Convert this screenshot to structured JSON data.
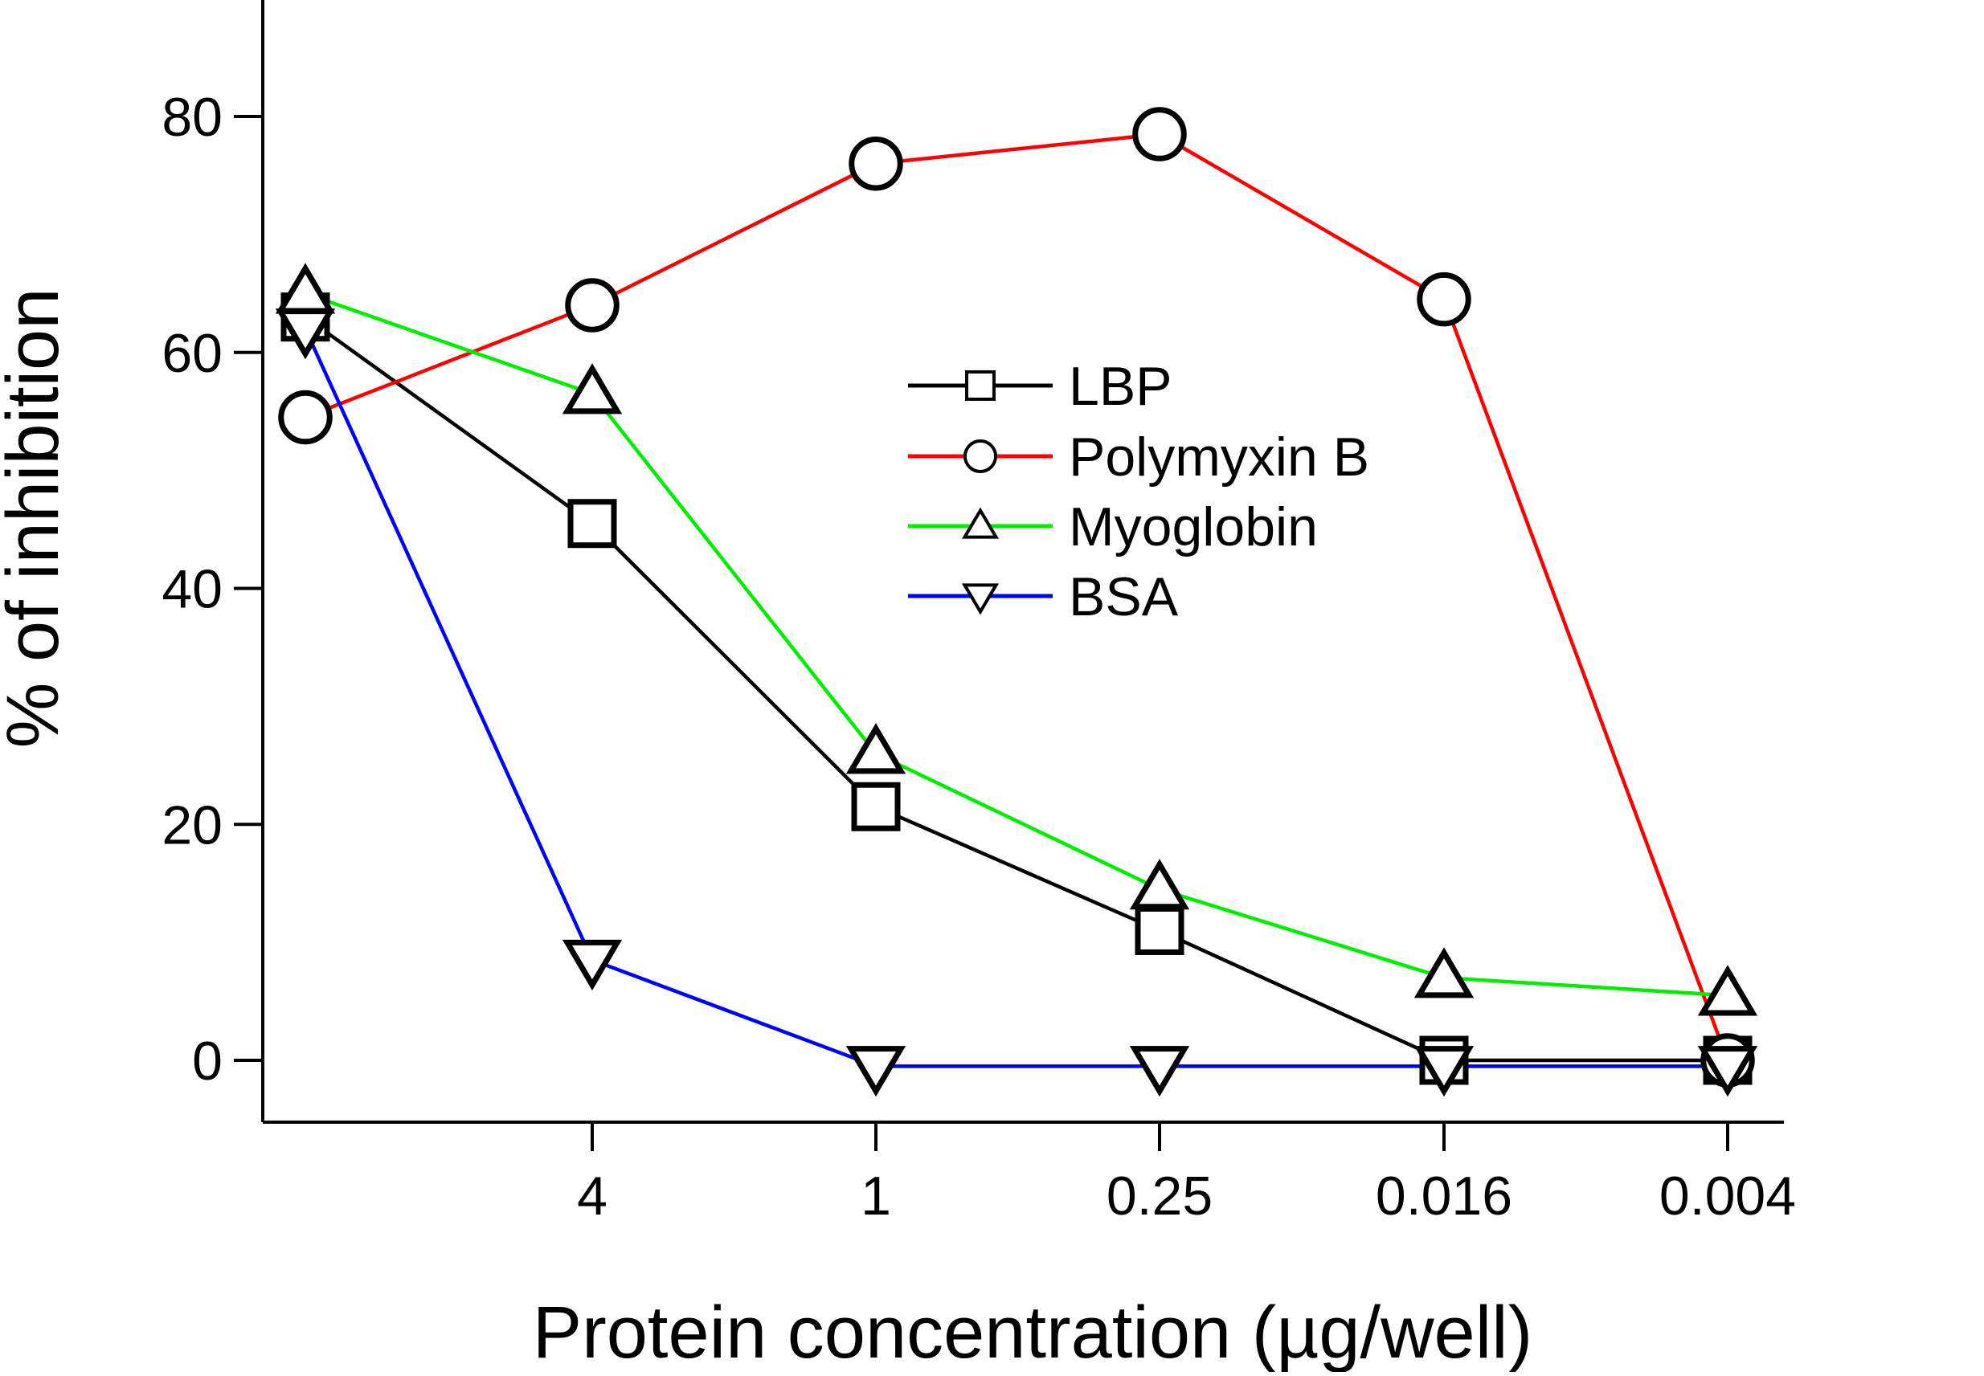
{
  "chart_data": {
    "type": "line",
    "title": "",
    "xlabel": "Protein concentration (µg/well)",
    "ylabel": "% of inhibition",
    "categories": [
      "",
      "4",
      "1",
      "0.25",
      "0.016",
      "0.004"
    ],
    "ylim": [
      -5,
      90
    ],
    "yticks": [
      0,
      20,
      40,
      60,
      80
    ],
    "grid": false,
    "legend_position": "center",
    "series": [
      {
        "name": "LBP",
        "marker": "square",
        "color": "#000000",
        "values": [
          63,
          45.5,
          21.5,
          11,
          0,
          0
        ]
      },
      {
        "name": "Polymyxin B",
        "marker": "circle",
        "color": "#ff0000",
        "values": [
          54.5,
          64,
          76,
          78.5,
          64.5,
          0
        ]
      },
      {
        "name": "Myoglobin",
        "marker": "triangle-up",
        "color": "#00ee00",
        "values": [
          65,
          56.5,
          26,
          14.5,
          7,
          5.5
        ]
      },
      {
        "name": "BSA",
        "marker": "triangle-down",
        "color": "#0000ff",
        "values": [
          62,
          8.5,
          -0.5,
          -0.5,
          -0.5,
          -0.5
        ]
      }
    ]
  }
}
